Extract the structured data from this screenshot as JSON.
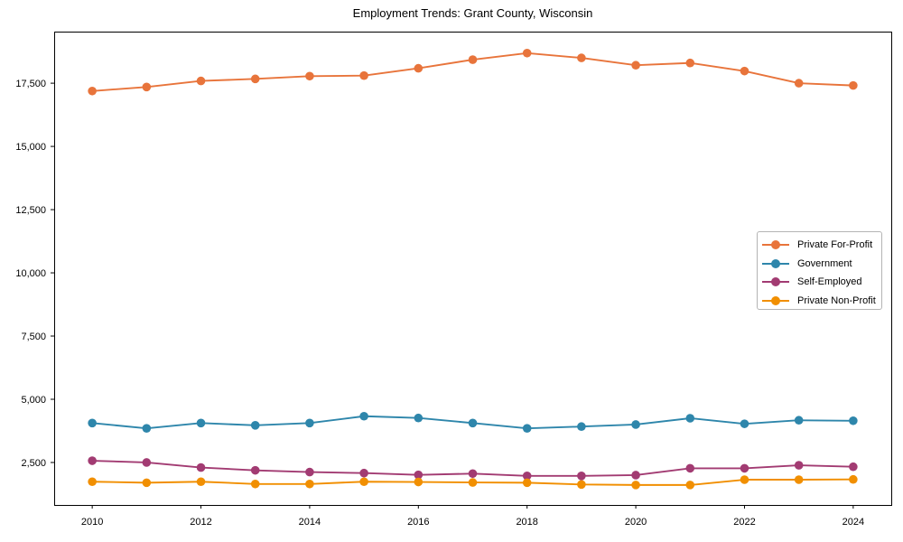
{
  "figure": {
    "background": "#ffffff",
    "spine_color": "#000000",
    "tick_label_color": "#000000"
  },
  "chart_data": {
    "type": "line",
    "title": "Employment Trends: Grant County, Wisconsin",
    "xlabel": "",
    "ylabel": "",
    "x": [
      2010,
      2011,
      2012,
      2013,
      2014,
      2015,
      2016,
      2017,
      2018,
      2019,
      2020,
      2021,
      2022,
      2023,
      2024
    ],
    "series": [
      {
        "name": "Private For-Profit",
        "color": "#E8743B",
        "marker": "circle",
        "values": [
          17190,
          17350,
          17590,
          17670,
          17780,
          17800,
          18090,
          18430,
          18690,
          18500,
          18210,
          18300,
          17980,
          17500,
          17410
        ]
      },
      {
        "name": "Government",
        "color": "#2E86AB",
        "marker": "circle",
        "values": [
          4060,
          3850,
          4060,
          3970,
          4060,
          4330,
          4260,
          4060,
          3850,
          3920,
          4000,
          4250,
          4030,
          4170,
          4150
        ]
      },
      {
        "name": "Self-Employed",
        "color": "#A23B72",
        "marker": "circle",
        "values": [
          2570,
          2500,
          2300,
          2190,
          2120,
          2080,
          2010,
          2060,
          1970,
          1970,
          2000,
          2270,
          2270,
          2390,
          2330
        ]
      },
      {
        "name": "Private Non-Profit",
        "color": "#F18F01",
        "marker": "circle",
        "values": [
          1740,
          1700,
          1740,
          1650,
          1650,
          1740,
          1730,
          1710,
          1700,
          1630,
          1610,
          1610,
          1820,
          1820,
          1830
        ]
      }
    ],
    "xlim": [
      2009.3,
      2024.7
    ],
    "ylim": [
      820,
      19540
    ],
    "xticks": {
      "values": [
        2010,
        2012,
        2014,
        2016,
        2018,
        2020,
        2022,
        2024
      ],
      "labels": [
        "2010",
        "2012",
        "2014",
        "2016",
        "2018",
        "2020",
        "2022",
        "2024"
      ]
    },
    "yticks": {
      "values": [
        2500,
        5000,
        7500,
        10000,
        12500,
        15000,
        17500
      ],
      "labels": [
        "2,500",
        "5,000",
        "7,500",
        "10,000",
        "12,500",
        "15,000",
        "17,500"
      ]
    },
    "grid": false,
    "legend_position": "center right"
  }
}
